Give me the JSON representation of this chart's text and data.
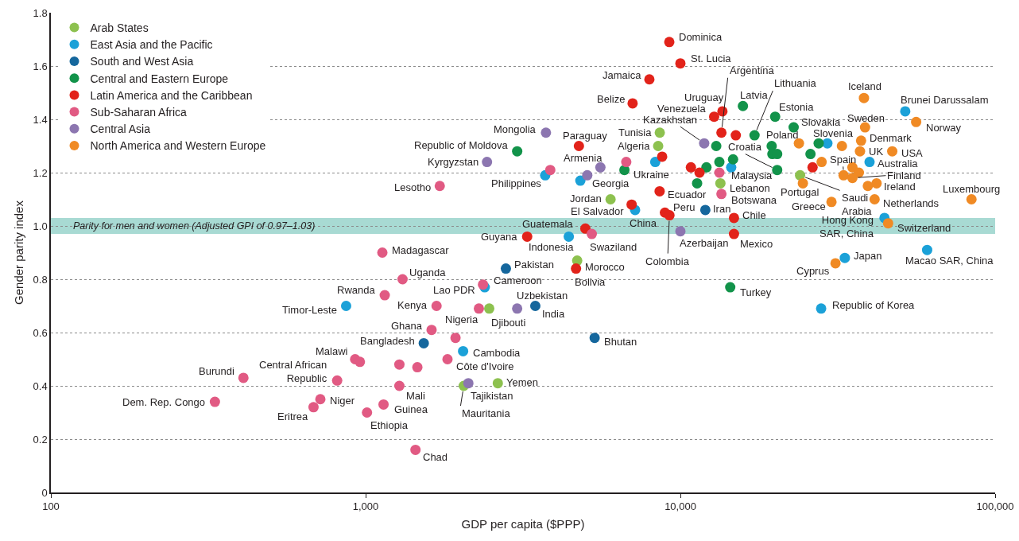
{
  "chart_data": {
    "type": "scatter",
    "xlabel": "GDP per capita ($PPP)",
    "ylabel": "Gender parity index",
    "log": "x",
    "grid": "y",
    "legend": "top left",
    "marker": "circle",
    "xlim": [
      100,
      100000
    ],
    "xticks": [
      100,
      {
        "value": 1000,
        "label": "1,000"
      },
      {
        "value": 10000,
        "label": "10,000"
      },
      {
        "value": 100000,
        "label": "100,000"
      }
    ],
    "ylim": [
      0,
      1.8
    ],
    "yticks": [
      0,
      0.2,
      0.4,
      0.6,
      0.8,
      {
        "value": 1,
        "label": "1.0"
      },
      1.2,
      1.4,
      1.6,
      1.8
    ],
    "series": [
      {
        "name": "Arab States",
        "color": "#8dc14f",
        "x": [
          8600,
          8500,
          6000,
          13400,
          4700,
          2470,
          2630,
          2050,
          24000
        ],
        "values": [
          1.35,
          1.3,
          1.1,
          1.16,
          0.87,
          0.69,
          0.41,
          0.4,
          1.19
        ]
      },
      {
        "name": "East Asia and the Pacific",
        "color": "#1ba1d8",
        "x": [
          51800,
          29300,
          39900,
          44500,
          60800,
          33300,
          28000,
          14500,
          3720,
          4810,
          8320,
          7180,
          4420,
          2390,
          2040,
          867
        ],
        "values": [
          1.43,
          1.31,
          1.24,
          1.03,
          0.91,
          0.88,
          0.69,
          1.22,
          1.19,
          1.17,
          1.24,
          1.06,
          0.96,
          0.77,
          0.53,
          0.7
        ]
      },
      {
        "name": "South and West Asia",
        "color": "#15679d",
        "x": [
          12000,
          2790,
          3460,
          1530,
          5340
        ],
        "values": [
          1.06,
          0.84,
          0.7,
          0.56,
          0.58
        ]
      },
      {
        "name": "Central and Eastern Europe",
        "color": "#12934a",
        "x": [
          3030,
          15800,
          17200,
          20000,
          22900,
          19500,
          19600,
          20300,
          20300,
          25900,
          27500,
          13000,
          12100,
          13300,
          14700,
          11300,
          6640,
          14400
        ],
        "values": [
          1.28,
          1.45,
          1.34,
          1.41,
          1.37,
          1.3,
          1.27,
          1.27,
          1.21,
          1.27,
          1.31,
          1.3,
          1.22,
          1.24,
          1.25,
          1.16,
          1.21,
          0.77
        ]
      },
      {
        "name": "Latin America and the Caribbean",
        "color": "#e2231a",
        "x": [
          9220,
          10000,
          7970,
          7050,
          13600,
          12800,
          13500,
          15000,
          4760,
          8750,
          10800,
          11500,
          8590,
          7000,
          8930,
          9230,
          4990,
          3260,
          14800,
          14800,
          4660,
          26300
        ],
        "values": [
          1.69,
          1.61,
          1.55,
          1.46,
          1.43,
          1.41,
          1.35,
          1.34,
          1.3,
          1.26,
          1.22,
          1.2,
          1.13,
          1.08,
          1.05,
          1.04,
          0.99,
          0.96,
          1.03,
          0.97,
          0.84,
          1.22
        ]
      },
      {
        "name": "Sub-Saharan Africa",
        "color": "#e15a83",
        "x": [
          1720,
          3860,
          6730,
          13300,
          13500,
          5230,
          1130,
          1310,
          1150,
          1680,
          2290,
          1620,
          1930,
          1460,
          1280,
          1820,
          926,
          959,
          812,
          409,
          332,
          718,
          683,
          1010,
          1140,
          1280,
          1440,
          2360
        ],
        "values": [
          1.15,
          1.21,
          1.24,
          1.2,
          1.12,
          0.97,
          0.9,
          0.8,
          0.74,
          0.7,
          0.69,
          0.61,
          0.58,
          0.47,
          0.48,
          0.5,
          0.5,
          0.49,
          0.42,
          0.43,
          0.34,
          0.35,
          0.32,
          0.3,
          0.33,
          0.4,
          0.16,
          0.78
        ]
      },
      {
        "name": "Central Asia",
        "color": "#8c76b0",
        "x": [
          3740,
          2430,
          5570,
          5060,
          11900,
          10000,
          3030,
          2120
        ],
        "values": [
          1.35,
          1.24,
          1.22,
          1.19,
          1.31,
          0.98,
          0.69,
          0.41
        ]
      },
      {
        "name": "North America and Western Europe",
        "color": "#f08a24",
        "x": [
          38300,
          56100,
          38600,
          37500,
          37200,
          47100,
          32600,
          23800,
          28100,
          33000,
          35200,
          36900,
          35200,
          42000,
          39400,
          41400,
          84100,
          30200,
          24500,
          45700,
          31100
        ],
        "values": [
          1.48,
          1.39,
          1.37,
          1.32,
          1.28,
          1.28,
          1.3,
          1.31,
          1.24,
          1.19,
          1.22,
          1.2,
          1.18,
          1.16,
          1.15,
          1.1,
          1.1,
          1.09,
          1.16,
          1.01,
          0.86
        ]
      }
    ],
    "bands": [
      {
        "axis": "y",
        "from": 0.97,
        "to": 1.03,
        "label": "Parity for men and women (Adjusted GPI of 0.97–1.03)",
        "color": "#a8dad3"
      }
    ],
    "annotations": [
      {
        "text": "Dominica",
        "x": 9220,
        "y": 1.69
      },
      {
        "text": "St. Lucia",
        "x": 10000,
        "y": 1.61
      },
      {
        "text": "Jamaica",
        "x": 7970,
        "y": 1.55
      },
      {
        "text": "Belize",
        "x": 7050,
        "y": 1.46
      },
      {
        "text": "Uruguay",
        "x": 13600,
        "y": 1.43
      },
      {
        "text": "Venezuela",
        "x": 12800,
        "y": 1.41
      },
      {
        "text": "Argentina",
        "x": 13500,
        "y": 1.35
      },
      {
        "text": "Kazakhstan",
        "x": 11900,
        "y": 1.31
      },
      {
        "text": "Paraguay",
        "x": 4760,
        "y": 1.3
      },
      {
        "text": "Mongolia",
        "x": 3740,
        "y": 1.35
      },
      {
        "text": "Republic of Moldova",
        "x": 3030,
        "y": 1.28
      },
      {
        "text": "Kyrgyzstan",
        "x": 2430,
        "y": 1.24
      },
      {
        "text": "Lesotho",
        "x": 1720,
        "y": 1.15
      },
      {
        "text": "Philippines",
        "x": 3720,
        "y": 1.19
      },
      {
        "text": "Armenia",
        "x": 5570,
        "y": 1.22
      },
      {
        "text": "Georgia",
        "x": 5060,
        "y": 1.19
      },
      {
        "text": "Tunisia",
        "x": 8600,
        "y": 1.35
      },
      {
        "text": "Algeria",
        "x": 8500,
        "y": 1.3
      },
      {
        "text": "Ukraine",
        "x": 6640,
        "y": 1.21
      },
      {
        "text": "Jordan",
        "x": 6000,
        "y": 1.1
      },
      {
        "text": "El Salvador",
        "x": 7000,
        "y": 1.08
      },
      {
        "text": "China",
        "x": 7180,
        "y": 1.06
      },
      {
        "text": "Ecuador",
        "x": 8590,
        "y": 1.13
      },
      {
        "text": "Peru",
        "x": 8930,
        "y": 1.05
      },
      {
        "text": "Colombia",
        "x": 9230,
        "y": 1.04
      },
      {
        "text": "Iran",
        "x": 12000,
        "y": 1.06
      },
      {
        "text": "Latvia",
        "x": 15800,
        "y": 1.45
      },
      {
        "text": "Lithuania",
        "x": 17200,
        "y": 1.34
      },
      {
        "text": "Estonia",
        "x": 20000,
        "y": 1.41
      },
      {
        "text": "Slovakia",
        "x": 22900,
        "y": 1.37
      },
      {
        "text": "Poland",
        "x": 19500,
        "y": 1.3
      },
      {
        "text": "Croatia",
        "x": 20300,
        "y": 1.21
      },
      {
        "text": "Malaysia",
        "x": 13300,
        "y": 1.2
      },
      {
        "text": "Lebanon",
        "x": 13400,
        "y": 1.16
      },
      {
        "text": "Botswana",
        "x": 13500,
        "y": 1.12
      },
      {
        "text": "Chile",
        "x": 14800,
        "y": 1.03
      },
      {
        "text": "Mexico",
        "x": 14800,
        "y": 0.97
      },
      {
        "text": "Azerbaijan",
        "x": 10000,
        "y": 0.98
      },
      {
        "text": "Guatemala",
        "x": 4990,
        "y": 0.99
      },
      {
        "text": "Guyana",
        "x": 3260,
        "y": 0.96
      },
      {
        "text": "Indonesia",
        "x": 4420,
        "y": 0.96
      },
      {
        "text": "Swaziland",
        "x": 5230,
        "y": 0.97
      },
      {
        "text": "Pakistan",
        "x": 2790,
        "y": 0.84
      },
      {
        "text": "Morocco",
        "x": 4700,
        "y": 0.87
      },
      {
        "text": "Bolivia",
        "x": 4660,
        "y": 0.84
      },
      {
        "text": "Cameroon",
        "x": 2360,
        "y": 0.78
      },
      {
        "text": "Lao PDR",
        "x": 2390,
        "y": 0.77
      },
      {
        "text": "Uzbekistan",
        "x": 3030,
        "y": 0.69
      },
      {
        "text": "India",
        "x": 3460,
        "y": 0.7
      },
      {
        "text": "Nigeria",
        "x": 2290,
        "y": 0.69
      },
      {
        "text": "Djibouti",
        "x": 2470,
        "y": 0.69
      },
      {
        "text": "Kenya",
        "x": 1680,
        "y": 0.7
      },
      {
        "text": "Ghana",
        "x": 1620,
        "y": 0.61
      },
      {
        "text": "Bangladesh",
        "x": 1530,
        "y": 0.56
      },
      {
        "text": "Bhutan",
        "x": 5340,
        "y": 0.58
      },
      {
        "text": "Cambodia",
        "x": 2040,
        "y": 0.53
      },
      {
        "text": "Côte d'Ivoire",
        "x": 1820,
        "y": 0.5
      },
      {
        "text": "Yemen",
        "x": 2630,
        "y": 0.41
      },
      {
        "text": "Tajikistan",
        "x": 2120,
        "y": 0.41
      },
      {
        "text": "Mauritania",
        "x": 2050,
        "y": 0.4
      },
      {
        "text": "Madagascar",
        "x": 1130,
        "y": 0.9
      },
      {
        "text": "Uganda",
        "x": 1310,
        "y": 0.8
      },
      {
        "text": "Rwanda",
        "x": 1150,
        "y": 0.74
      },
      {
        "text": "Timor-Leste",
        "x": 867,
        "y": 0.7
      },
      {
        "text": "Malawi",
        "x": 926,
        "y": 0.5
      },
      {
        "text": "Central African Republic",
        "x": 812,
        "y": 0.42
      },
      {
        "text": "Burundi",
        "x": 409,
        "y": 0.43
      },
      {
        "text": "Dem. Rep. Congo",
        "x": 332,
        "y": 0.34
      },
      {
        "text": "Niger",
        "x": 718,
        "y": 0.35
      },
      {
        "text": "Eritrea",
        "x": 683,
        "y": 0.32
      },
      {
        "text": "Ethiopia",
        "x": 1010,
        "y": 0.3
      },
      {
        "text": "Guinea",
        "x": 1140,
        "y": 0.33
      },
      {
        "text": "Mali",
        "x": 1280,
        "y": 0.4
      },
      {
        "text": "Chad",
        "x": 1440,
        "y": 0.16
      },
      {
        "text": "Iceland",
        "x": 38300,
        "y": 1.48
      },
      {
        "text": "Brunei Darussalam",
        "x": 51800,
        "y": 1.43
      },
      {
        "text": "Norway",
        "x": 56100,
        "y": 1.39
      },
      {
        "text": "Sweden",
        "x": 38600,
        "y": 1.37
      },
      {
        "text": "Denmark",
        "x": 37500,
        "y": 1.32
      },
      {
        "text": "UK",
        "x": 37200,
        "y": 1.28
      },
      {
        "text": "USA",
        "x": 47100,
        "y": 1.28
      },
      {
        "text": "Slovenia",
        "x": 27500,
        "y": 1.31
      },
      {
        "text": "Spain",
        "x": 33000,
        "y": 1.19
      },
      {
        "text": "Australia",
        "x": 39900,
        "y": 1.24
      },
      {
        "text": "Finland",
        "x": 35200,
        "y": 1.18
      },
      {
        "text": "Ireland",
        "x": 42000,
        "y": 1.16
      },
      {
        "text": "Netherlands",
        "x": 41400,
        "y": 1.1
      },
      {
        "text": "Luxembourg",
        "x": 84100,
        "y": 1.1
      },
      {
        "text": "Portugal",
        "x": 24500,
        "y": 1.16
      },
      {
        "text": "Greece",
        "x": 30200,
        "y": 1.09
      },
      {
        "text": "Saudi Arabia",
        "x": 24000,
        "y": 1.19
      },
      {
        "text": "Hong Kong SAR, China",
        "x": 44500,
        "y": 1.03
      },
      {
        "text": "Switzerland",
        "x": 45700,
        "y": 1.01
      },
      {
        "text": "Japan",
        "x": 33300,
        "y": 0.88
      },
      {
        "text": "Cyprus",
        "x": 31100,
        "y": 0.86
      },
      {
        "text": "Macao SAR, China",
        "x": 60800,
        "y": 0.91
      },
      {
        "text": "Republic of Korea",
        "x": 28000,
        "y": 0.69
      },
      {
        "text": "Turkey",
        "x": 14400,
        "y": 0.77
      }
    ]
  }
}
